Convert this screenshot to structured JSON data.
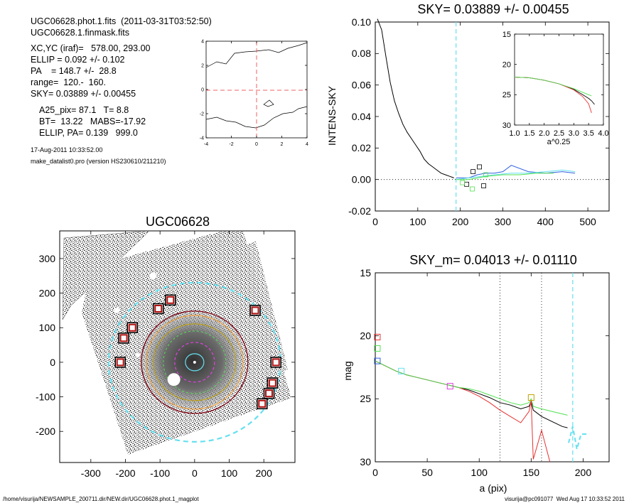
{
  "info": {
    "lines": [
      "UGC06628.phot.1.fits  (2011-03-31T03:52:50)",
      "UGC06628.1.finmask.fits",
      "XC,YC (iraf)=   578.00, 293.00",
      "ELLIP = 0.092 +/- 0.102",
      "PA    = 148.7 +/-  28.8",
      "range=  120.-  160.",
      "SKY= 0.03889 +/- 0.00455",
      "A25_pix= 87.1   T= 8.8",
      "BT=  13.22   MABS=-17.92",
      "ELLIP, PA= 0.139   999.0",
      "17-Aug-2011 10:33:52.00",
      "make_datalist0.pro (version HS230610/211210)"
    ]
  },
  "footer": {
    "left": "/home/visurija/NEWSAMPLE_200711.dir/NEW.dir/UGC06628.phot.1_magplot",
    "right": "visurija@pc091077  Wed Aug 17 10:33:52 2011"
  },
  "colors": {
    "cyan": "#66e0f0",
    "red": "#e83030",
    "green": "#50e050",
    "blue": "#3060e0",
    "magenta": "#e040e0",
    "olive": "#c0a000",
    "maroon": "#800010",
    "orange": "#f0a040",
    "grid_red": "#f06060"
  },
  "chart_data": [
    {
      "id": "contour",
      "type": "contour",
      "title": "",
      "xlim": [
        -4,
        4
      ],
      "ylim": [
        -4,
        4
      ],
      "xticks": [
        "-4",
        "-2",
        "0",
        "2",
        "4"
      ],
      "yticks": [
        "-4",
        "-2",
        "0",
        "2",
        "4"
      ],
      "crosshair": [
        0,
        0
      ]
    },
    {
      "id": "sky",
      "type": "line",
      "title": "SKY= 0.03889 +/- 0.00455",
      "xlabel": "",
      "ylabel": "INTENS-SKY",
      "xlim": [
        0,
        550
      ],
      "ylim": [
        -0.02,
        0.1
      ],
      "xticks": [
        "0",
        "100",
        "200",
        "300",
        "400",
        "500"
      ],
      "yticks": [
        "-0.02",
        "0.00",
        "0.02",
        "0.04",
        "0.06",
        "0.08",
        "0.10"
      ],
      "vline": 190,
      "series": [
        {
          "color": "black",
          "x": [
            5,
            15,
            25,
            35,
            45,
            55,
            65,
            75,
            85,
            95,
            105,
            115,
            125,
            135,
            145,
            155,
            165,
            175,
            185
          ],
          "y": [
            0.11,
            0.095,
            0.078,
            0.062,
            0.05,
            0.042,
            0.035,
            0.03,
            0.026,
            0.022,
            0.018,
            0.013,
            0.01,
            0.008,
            0.006,
            0.004,
            0.003,
            0.002,
            0.001
          ]
        },
        {
          "color": "blue",
          "x": [
            190,
            220,
            240,
            260,
            280,
            300,
            320,
            360,
            400,
            440,
            470
          ],
          "y": [
            0.001,
            0.001,
            0.003,
            0.004,
            0.004,
            0.005,
            0.009,
            0.005,
            0.004,
            0.005,
            0.004
          ]
        },
        {
          "color": "cyan",
          "x": [
            190,
            220,
            250,
            280,
            320,
            360,
            400,
            440,
            470
          ],
          "y": [
            0.0,
            0.001,
            0.002,
            0.003,
            0.004,
            0.004,
            0.005,
            0.006,
            0.005
          ]
        },
        {
          "color": "green",
          "x": [
            190,
            220,
            260,
            300,
            340,
            380,
            420
          ],
          "y": [
            0.0,
            0.0,
            0.002,
            0.003,
            0.003,
            0.004,
            0.004
          ]
        }
      ],
      "squares": [
        {
          "color": "black",
          "x": 230,
          "y": 0.005
        },
        {
          "color": "black",
          "x": 245,
          "y": 0.008
        },
        {
          "color": "black",
          "x": 215,
          "y": -0.003
        },
        {
          "color": "black",
          "x": 255,
          "y": -0.004
        },
        {
          "color": "green",
          "x": 228,
          "y": -0.006
        },
        {
          "color": "green",
          "x": 260,
          "y": 0.003
        },
        {
          "color": "green",
          "x": 205,
          "y": -0.002
        }
      ],
      "inset": {
        "xlabel": "a^0.25",
        "xlim": [
          1.0,
          4.0
        ],
        "ylim": [
          30,
          15
        ],
        "xticks": [
          "1.0",
          "1.5",
          "2.0",
          "2.5",
          "3.0",
          "3.5",
          "4.0"
        ],
        "yticks": [
          "15",
          "20",
          "25",
          "30"
        ],
        "series": [
          {
            "color": "black",
            "x": [
              1.0,
              1.5,
              2.0,
              2.5,
              3.0,
              3.3,
              3.5,
              3.6,
              3.7
            ],
            "y": [
              22.1,
              22.2,
              22.6,
              23.2,
              24.1,
              25.0,
              25.6,
              26.0,
              26.6
            ]
          },
          {
            "color": "red",
            "x": [
              1.0,
              1.5,
              2.0,
              2.5,
              3.0,
              3.3,
              3.5,
              3.6
            ],
            "y": [
              22.1,
              22.2,
              22.6,
              23.2,
              24.2,
              25.3,
              26.5,
              28.0
            ]
          },
          {
            "color": "green",
            "x": [
              1.0,
              1.5,
              2.0,
              2.5,
              3.0,
              3.3,
              3.5,
              3.6
            ],
            "y": [
              22.1,
              22.2,
              22.6,
              23.2,
              24.0,
              24.6,
              25.0,
              25.2
            ]
          }
        ]
      }
    },
    {
      "id": "image",
      "type": "image",
      "title": "UGC06628",
      "xlim": [
        -390,
        290
      ],
      "ylim": [
        -290,
        380
      ],
      "xticks": [
        "-300",
        "-200",
        "-100",
        "0",
        "100",
        "200"
      ],
      "yticks": [
        "-200",
        "-100",
        "0",
        "100",
        "200",
        "300"
      ],
      "masks": [
        [
          -215,
          0
        ],
        [
          -205,
          70
        ],
        [
          -180,
          100
        ],
        [
          -105,
          155
        ],
        [
          -70,
          180
        ],
        [
          175,
          150
        ],
        [
          235,
          0
        ],
        [
          225,
          -60
        ],
        [
          215,
          -90
        ],
        [
          195,
          -120
        ]
      ]
    },
    {
      "id": "mag",
      "type": "line",
      "title": "SKY_m=  0.04013 +/- 0.01110",
      "xlabel": "a (pix)",
      "ylabel": "mag",
      "xlim": [
        0,
        225
      ],
      "ylim": [
        30,
        15
      ],
      "xticks": [
        "0",
        "50",
        "100",
        "150",
        "200"
      ],
      "yticks": [
        "15",
        "20",
        "25",
        "30"
      ],
      "vlines_dotted": [
        120,
        160
      ],
      "vline_dashed": 190,
      "series": [
        {
          "color": "black",
          "x": [
            0,
            10,
            20,
            30,
            40,
            50,
            60,
            70,
            80,
            90,
            100,
            110,
            120,
            130,
            140,
            148,
            150,
            152,
            160,
            170,
            180,
            185
          ],
          "y": [
            22.0,
            22.4,
            22.8,
            23.1,
            23.3,
            23.5,
            23.7,
            23.9,
            24.1,
            24.3,
            24.6,
            24.9,
            25.3,
            25.5,
            25.8,
            25.6,
            25.2,
            25.9,
            26.4,
            26.8,
            27.2,
            27.3
          ]
        },
        {
          "color": "red",
          "x": [
            0,
            10,
            20,
            30,
            40,
            50,
            60,
            70,
            80,
            90,
            100,
            110,
            120,
            130,
            140,
            148,
            150,
            152,
            160,
            168
          ],
          "y": [
            22.0,
            22.4,
            22.8,
            23.1,
            23.3,
            23.5,
            23.7,
            23.9,
            24.1,
            24.4,
            24.8,
            25.3,
            25.9,
            26.4,
            26.9,
            26.0,
            25.1,
            29.8,
            27.5,
            30.0
          ]
        },
        {
          "color": "green",
          "x": [
            0,
            10,
            20,
            30,
            40,
            50,
            60,
            70,
            80,
            90,
            100,
            110,
            120,
            130,
            140,
            148,
            150,
            152,
            160,
            170,
            180,
            185
          ],
          "y": [
            22.0,
            22.4,
            22.8,
            23.1,
            23.3,
            23.5,
            23.7,
            23.9,
            24.1,
            24.2,
            24.4,
            24.7,
            25.0,
            25.3,
            25.5,
            25.3,
            25.0,
            25.6,
            25.8,
            26.0,
            26.2,
            26.3
          ]
        },
        {
          "color": "cyan",
          "x": [
            186,
            190,
            194,
            198,
            206
          ],
          "y": [
            28.5,
            27.2,
            29.0,
            27.8,
            27.8
          ]
        }
      ],
      "squares": [
        {
          "color": "red",
          "x": 2,
          "y": 20.1
        },
        {
          "color": "green",
          "x": 2,
          "y": 21.0
        },
        {
          "color": "blue",
          "x": 2,
          "y": 22.0
        },
        {
          "color": "cyan",
          "x": 25,
          "y": 22.8
        },
        {
          "color": "magenta",
          "x": 72,
          "y": 24.0
        },
        {
          "color": "olive",
          "x": 150,
          "y": 24.9
        }
      ]
    }
  ]
}
